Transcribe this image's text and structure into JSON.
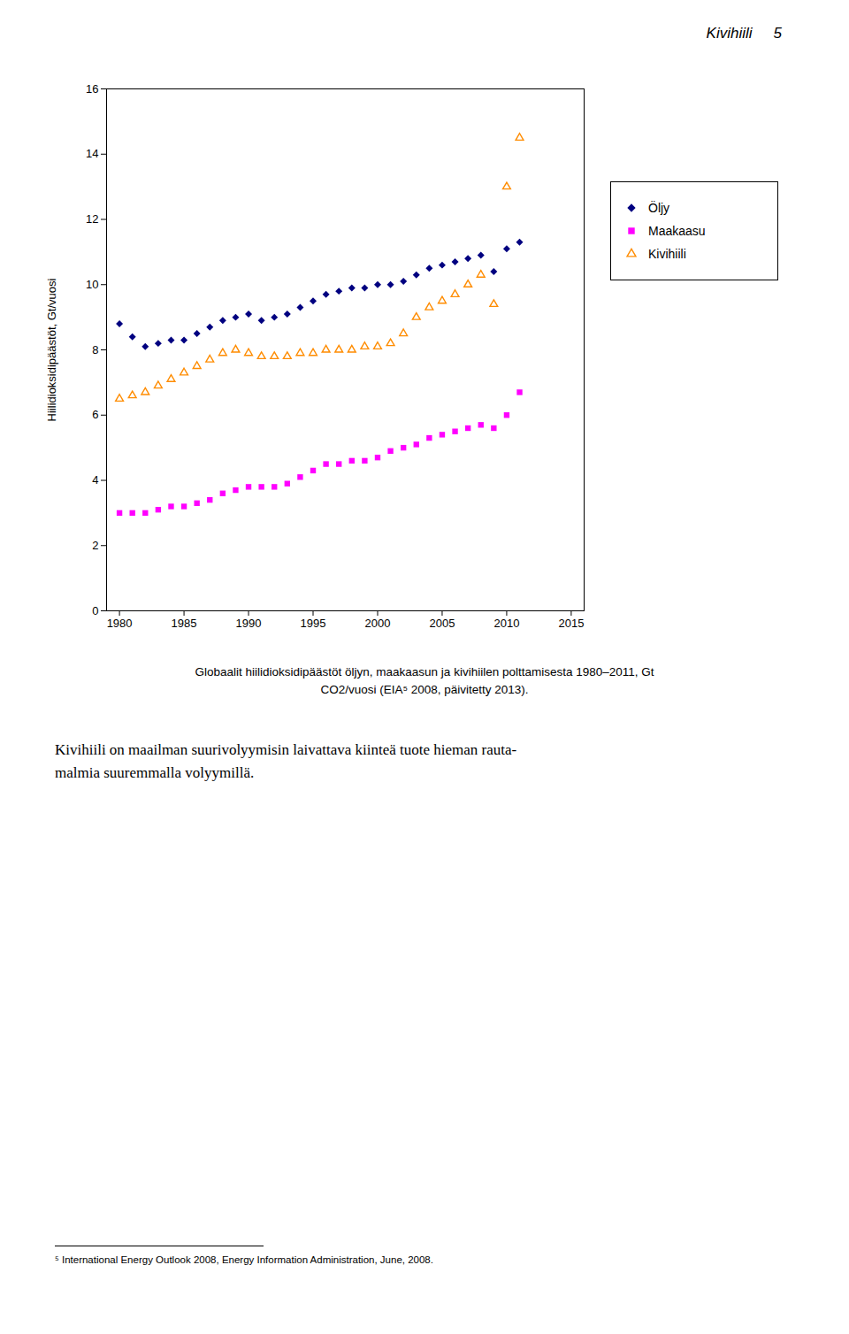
{
  "chart_data": {
    "type": "scatter",
    "header": [
      "Kivihiili",
      "5"
    ],
    "x": [
      1980,
      1981,
      1982,
      1983,
      1984,
      1985,
      1986,
      1987,
      1988,
      1989,
      1990,
      1991,
      1992,
      1993,
      1994,
      1995,
      1996,
      1997,
      1998,
      1999,
      2000,
      2001,
      2002,
      2003,
      2004,
      2005,
      2006,
      2007,
      2008,
      2009,
      2010,
      2011
    ],
    "series": [
      {
        "name": "Öljy",
        "color": "#000080",
        "marker": "diamond",
        "values": [
          8.8,
          8.4,
          8.1,
          8.2,
          8.3,
          8.3,
          8.5,
          8.7,
          8.9,
          9.0,
          9.1,
          8.9,
          9.0,
          9.1,
          9.3,
          9.5,
          9.7,
          9.8,
          9.9,
          9.9,
          10.0,
          10.0,
          10.1,
          10.3,
          10.5,
          10.6,
          10.7,
          10.8,
          10.9,
          10.4,
          11.1,
          11.3
        ]
      },
      {
        "name": "Maakaasu",
        "color": "#FF00FF",
        "marker": "square",
        "values": [
          3.0,
          3.0,
          3.0,
          3.1,
          3.2,
          3.2,
          3.3,
          3.4,
          3.6,
          3.7,
          3.8,
          3.8,
          3.8,
          3.9,
          4.1,
          4.3,
          4.5,
          4.5,
          4.6,
          4.6,
          4.7,
          4.9,
          5.0,
          5.1,
          5.3,
          5.4,
          5.5,
          5.6,
          5.7,
          5.6,
          6.0,
          6.7
        ]
      },
      {
        "name": "Kivihiili",
        "color": "#FF8C00",
        "marker": "triangle_open",
        "values": [
          6.5,
          6.6,
          6.7,
          6.9,
          7.1,
          7.3,
          7.5,
          7.7,
          7.9,
          8.0,
          7.9,
          7.8,
          7.8,
          7.8,
          7.9,
          7.9,
          8.0,
          8.0,
          8.0,
          8.1,
          8.1,
          8.2,
          8.5,
          9.0,
          9.3,
          9.5,
          9.7,
          10.0,
          10.3,
          9.4,
          13.0,
          14.5
        ]
      }
    ],
    "xlim": [
      1979,
      2016
    ],
    "xticks": [
      1980,
      1985,
      1990,
      1995,
      2000,
      2005,
      2010,
      2015
    ],
    "ylim": [
      0,
      16
    ],
    "yticks": [
      0,
      2,
      4,
      6,
      8,
      10,
      12,
      14,
      16
    ],
    "ylabel": "Hiilidioksidipäästöt, Gt/vuosi",
    "grid": false,
    "legend": "right",
    "caption": [
      "Globaalit hiilidioksidipäästöt öljyn, maakaasun ja kivihiilen polttamisesta 1980–2011, Gt",
      "CO2/vuosi (EIA⁵ 2008, päivitetty 2013)."
    ],
    "body_text": [
      "Kivihiili on maailman suurivolyymisin laivattava kiinteä tuote hieman rauta-",
      "malmia suuremmalla volyymillä."
    ],
    "footnote": "⁵ International Energy Outlook 2008, Energy Information Administration, June, 2008."
  }
}
